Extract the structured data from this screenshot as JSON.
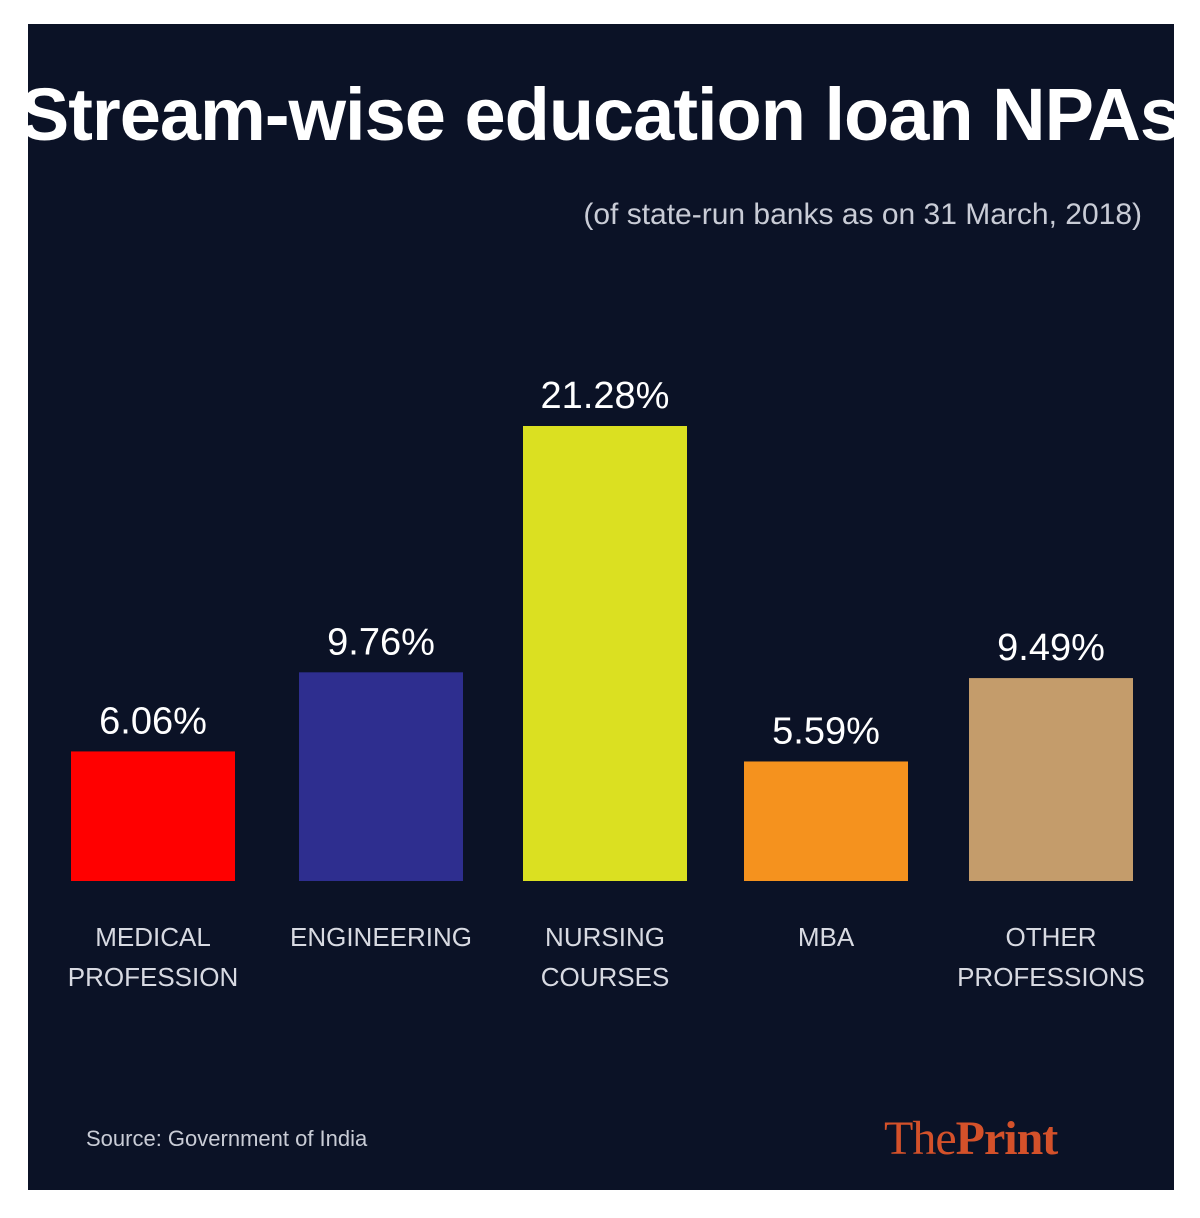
{
  "header": {
    "title": "Stream-wise education loan NPAs",
    "subtitle": "(of state-run banks as on 31 March, 2018)"
  },
  "footer": {
    "source": "Source: Government of India",
    "brand_part1": "The",
    "brand_part2": "Print",
    "brand_color": "#d4512a"
  },
  "colors": {
    "background": "#0b1226",
    "text": "#ffffff"
  },
  "chart_data": {
    "type": "bar",
    "title": "Stream-wise education loan NPAs",
    "subtitle": "(of state-run banks as on 31 March, 2018)",
    "categories": [
      [
        "MEDICAL",
        "PROFESSION"
      ],
      [
        "ENGINEERING"
      ],
      [
        "NURSING",
        "COURSES"
      ],
      [
        "MBA"
      ],
      [
        "OTHER",
        "PROFESSIONS"
      ]
    ],
    "values": [
      6.06,
      9.76,
      21.28,
      5.59,
      9.49
    ],
    "value_labels": [
      "6.06%",
      "9.76%",
      "21.28%",
      "5.59%",
      "9.49%"
    ],
    "colors": [
      "#ff0000",
      "#2e2e8f",
      "#dbe021",
      "#f5921e",
      "#c49c6b"
    ],
    "xlabel": "",
    "ylabel": "",
    "ylim": [
      0,
      21.28
    ],
    "grid": false,
    "legend": "none"
  }
}
